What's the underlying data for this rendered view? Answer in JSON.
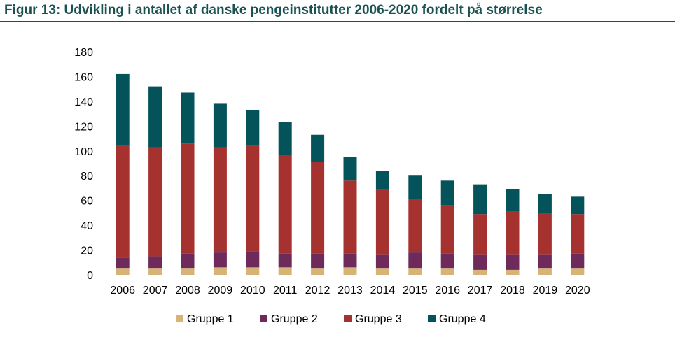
{
  "title": "Figur 13: Udvikling i antallet af danske pengeinstitutter 2006-2020 fordelt på størrelse",
  "chart_data": {
    "type": "bar",
    "stacked": true,
    "title": "Figur 13: Udvikling i antallet af danske pengeinstitutter 2006-2020 fordelt på størrelse",
    "xlabel": "",
    "ylabel": "",
    "ylim": [
      0,
      180
    ],
    "yticks": [
      0,
      20,
      40,
      60,
      80,
      100,
      120,
      140,
      160,
      180
    ],
    "grid": false,
    "legend_position": "bottom",
    "categories": [
      "2006",
      "2007",
      "2008",
      "2009",
      "2010",
      "2011",
      "2012",
      "2013",
      "2014",
      "2015",
      "2016",
      "2017",
      "2018",
      "2019",
      "2020"
    ],
    "series": [
      {
        "name": "Gruppe 1",
        "color": "#d6b377",
        "values": [
          5,
          5,
          5,
          6,
          6,
          6,
          5,
          6,
          5,
          5,
          5,
          4,
          4,
          5,
          5
        ]
      },
      {
        "name": "Gruppe 2",
        "color": "#6e2a5a",
        "values": [
          9,
          10,
          12,
          12,
          13,
          11,
          12,
          11,
          11,
          13,
          12,
          12,
          12,
          11,
          12
        ]
      },
      {
        "name": "Gruppe 3",
        "color": "#a5322e",
        "values": [
          90,
          88,
          89,
          85,
          85,
          80,
          74,
          59,
          53,
          43,
          39,
          33,
          35,
          34,
          32
        ]
      },
      {
        "name": "Gruppe 4",
        "color": "#04535a",
        "values": [
          58,
          49,
          41,
          35,
          29,
          26,
          22,
          19,
          15,
          19,
          20,
          24,
          18,
          15,
          14
        ]
      }
    ]
  }
}
